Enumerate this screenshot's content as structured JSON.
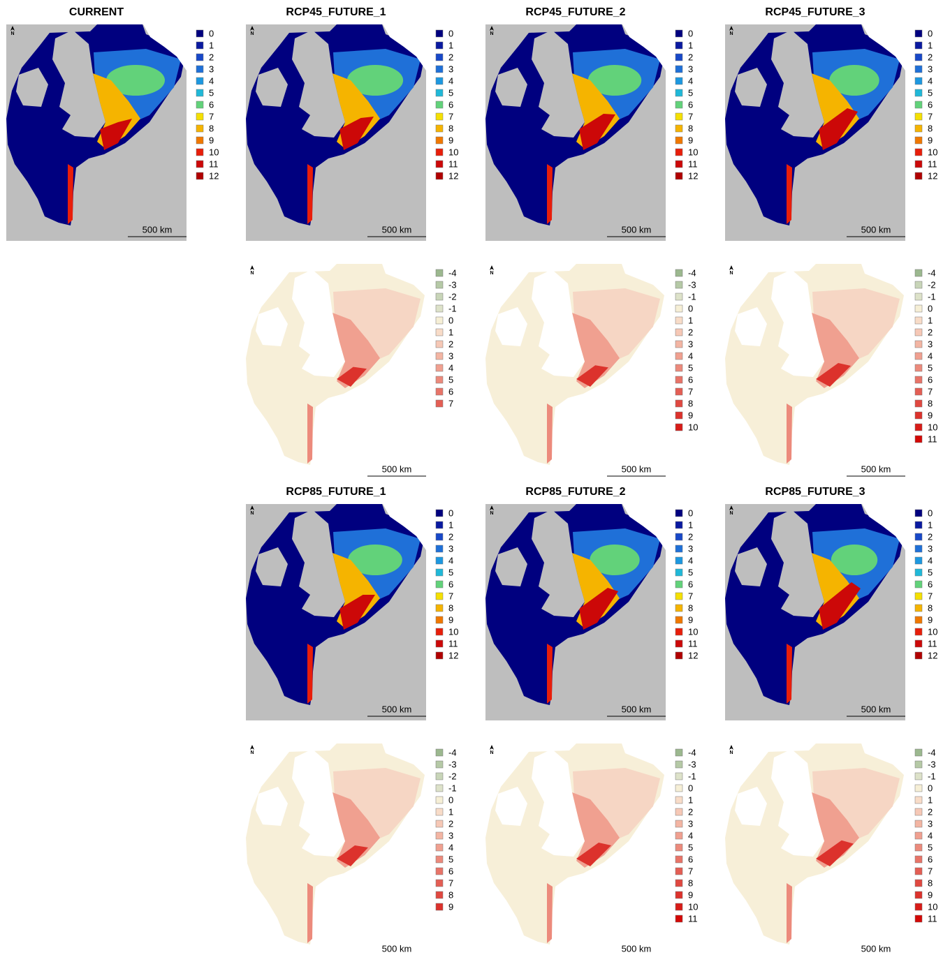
{
  "panels": [
    {
      "title": "CURRENT",
      "legend": {
        "labels": [
          "0",
          "1",
          "2",
          "3",
          "4",
          "5",
          "6",
          "7",
          "8",
          "9",
          "10",
          "11",
          "12"
        ],
        "colors": [
          "#00007f",
          "#0a1aa0",
          "#1848c8",
          "#1f70d8",
          "#1d98e0",
          "#20b8d8",
          "#62d27a",
          "#f5e000",
          "#f5b400",
          "#f07800",
          "#e81e0a",
          "#cc0808",
          "#b00000"
        ]
      },
      "scale_bar": "500 km",
      "north": "N"
    },
    {
      "title": "RCP45_FUTURE_1",
      "legend": {
        "labels": [
          "0",
          "1",
          "2",
          "3",
          "4",
          "5",
          "6",
          "7",
          "8",
          "9",
          "10",
          "11",
          "12"
        ],
        "colors": [
          "#00007f",
          "#0a1aa0",
          "#1848c8",
          "#1f70d8",
          "#1d98e0",
          "#20b8d8",
          "#62d27a",
          "#f5e000",
          "#f5b400",
          "#f07800",
          "#e81e0a",
          "#cc0808",
          "#b00000"
        ]
      },
      "scale_bar": "500 km",
      "north": "N"
    },
    {
      "title": "RCP45_FUTURE_2",
      "legend": {
        "labels": [
          "0",
          "1",
          "2",
          "3",
          "4",
          "5",
          "6",
          "7",
          "8",
          "9",
          "10",
          "11",
          "12"
        ],
        "colors": [
          "#00007f",
          "#0a1aa0",
          "#1848c8",
          "#1f70d8",
          "#1d98e0",
          "#20b8d8",
          "#62d27a",
          "#f5e000",
          "#f5b400",
          "#f07800",
          "#e81e0a",
          "#cc0808",
          "#b00000"
        ]
      },
      "scale_bar": "500 km",
      "north": "N"
    },
    {
      "title": "RCP45_FUTURE_3",
      "legend": {
        "labels": [
          "0",
          "1",
          "2",
          "3",
          "4",
          "5",
          "6",
          "7",
          "8",
          "9",
          "10",
          "11",
          "12"
        ],
        "colors": [
          "#00007f",
          "#0a1aa0",
          "#1848c8",
          "#1f70d8",
          "#1d98e0",
          "#20b8d8",
          "#62d27a",
          "#f5e000",
          "#f5b400",
          "#f07800",
          "#e81e0a",
          "#cc0808",
          "#b00000"
        ]
      },
      "scale_bar": "500 km",
      "north": "N"
    },
    {
      "legend": {
        "labels": [
          "-4",
          "-3",
          "-2",
          "-1",
          "0",
          "1",
          "2",
          "3",
          "4",
          "5",
          "6",
          "7"
        ],
        "colors": [
          "#9cb88f",
          "#b5c9a6",
          "#c8d5b8",
          "#dde2c9",
          "#f6efd6",
          "#f8dcc8",
          "#f6c8b6",
          "#f3b5a3",
          "#f0a090",
          "#ec8a7c",
          "#e87468",
          "#e45e54"
        ]
      },
      "scale_bar": "500 km",
      "north": "N"
    },
    {
      "legend": {
        "labels": [
          "-4",
          "-3",
          "-1",
          "0",
          "1",
          "2",
          "3",
          "4",
          "5",
          "6",
          "7",
          "8",
          "9",
          "10"
        ],
        "colors": [
          "#9cb88f",
          "#b5c9a6",
          "#dde2c9",
          "#f6efd6",
          "#f8dcc8",
          "#f6c8b6",
          "#f3b5a3",
          "#f0a090",
          "#ec8a7c",
          "#e87468",
          "#e45e54",
          "#e04840",
          "#dc322c",
          "#d81c18"
        ]
      },
      "scale_bar": "500 km",
      "north": "N"
    },
    {
      "legend": {
        "labels": [
          "-4",
          "-2",
          "-1",
          "0",
          "1",
          "2",
          "3",
          "4",
          "5",
          "6",
          "7",
          "8",
          "9",
          "10",
          "11"
        ],
        "colors": [
          "#9cb88f",
          "#c8d5b8",
          "#dde2c9",
          "#f6efd6",
          "#f8dcc8",
          "#f6c8b6",
          "#f3b5a3",
          "#f0a090",
          "#ec8a7c",
          "#e87468",
          "#e45e54",
          "#e04840",
          "#dc322c",
          "#d81c18",
          "#d40806"
        ]
      },
      "scale_bar": "500 km",
      "north": "N"
    },
    {
      "title": "RCP85_FUTURE_1",
      "legend": {
        "labels": [
          "0",
          "1",
          "2",
          "3",
          "4",
          "5",
          "6",
          "7",
          "8",
          "9",
          "10",
          "11",
          "12"
        ],
        "colors": [
          "#00007f",
          "#0a1aa0",
          "#1848c8",
          "#1f70d8",
          "#1d98e0",
          "#20b8d8",
          "#62d27a",
          "#f5e000",
          "#f5b400",
          "#f07800",
          "#e81e0a",
          "#cc0808",
          "#b00000"
        ]
      },
      "scale_bar": "500 km",
      "north": "N"
    },
    {
      "title": "RCP85_FUTURE_2",
      "legend": {
        "labels": [
          "0",
          "1",
          "2",
          "3",
          "4",
          "5",
          "6",
          "7",
          "8",
          "9",
          "10",
          "11",
          "12"
        ],
        "colors": [
          "#00007f",
          "#0a1aa0",
          "#1848c8",
          "#1f70d8",
          "#1d98e0",
          "#20b8d8",
          "#62d27a",
          "#f5e000",
          "#f5b400",
          "#f07800",
          "#e81e0a",
          "#cc0808",
          "#b00000"
        ]
      },
      "scale_bar": "500 km",
      "north": "N"
    },
    {
      "title": "RCP85_FUTURE_3",
      "legend": {
        "labels": [
          "0",
          "1",
          "2",
          "3",
          "4",
          "5",
          "6",
          "7",
          "8",
          "9",
          "10",
          "11",
          "12"
        ],
        "colors": [
          "#00007f",
          "#0a1aa0",
          "#1848c8",
          "#1f70d8",
          "#1d98e0",
          "#20b8d8",
          "#62d27a",
          "#f5e000",
          "#f5b400",
          "#f07800",
          "#e81e0a",
          "#cc0808",
          "#b00000"
        ]
      },
      "scale_bar": "500 km",
      "north": "N"
    },
    {
      "legend": {
        "labels": [
          "-4",
          "-3",
          "-2",
          "-1",
          "0",
          "1",
          "2",
          "3",
          "4",
          "5",
          "6",
          "7",
          "8",
          "9"
        ],
        "colors": [
          "#9cb88f",
          "#b5c9a6",
          "#c8d5b8",
          "#dde2c9",
          "#f6efd6",
          "#f8dcc8",
          "#f6c8b6",
          "#f3b5a3",
          "#f0a090",
          "#ec8a7c",
          "#e87468",
          "#e45e54",
          "#e04840",
          "#dc322c"
        ]
      },
      "scale_bar": "500 km",
      "north": "N"
    },
    {
      "legend": {
        "labels": [
          "-4",
          "-3",
          "-1",
          "0",
          "1",
          "2",
          "3",
          "4",
          "5",
          "6",
          "7",
          "8",
          "9",
          "10",
          "11"
        ],
        "colors": [
          "#9cb88f",
          "#b5c9a6",
          "#dde2c9",
          "#f6efd6",
          "#f8dcc8",
          "#f6c8b6",
          "#f3b5a3",
          "#f0a090",
          "#ec8a7c",
          "#e87468",
          "#e45e54",
          "#e04840",
          "#dc322c",
          "#d81c18",
          "#d40806"
        ]
      },
      "scale_bar": "500 km",
      "north": "N"
    },
    {
      "legend": {
        "labels": [
          "-4",
          "-3",
          "-1",
          "0",
          "1",
          "2",
          "3",
          "4",
          "5",
          "6",
          "7",
          "8",
          "9",
          "10",
          "11"
        ],
        "colors": [
          "#9cb88f",
          "#b5c9a6",
          "#dde2c9",
          "#f6efd6",
          "#f8dcc8",
          "#f6c8b6",
          "#f3b5a3",
          "#f0a090",
          "#ec8a7c",
          "#e87468",
          "#e45e54",
          "#e04840",
          "#dc322c",
          "#d81c18",
          "#d40806"
        ]
      },
      "scale_bar": "500 km",
      "north": "N"
    }
  ]
}
